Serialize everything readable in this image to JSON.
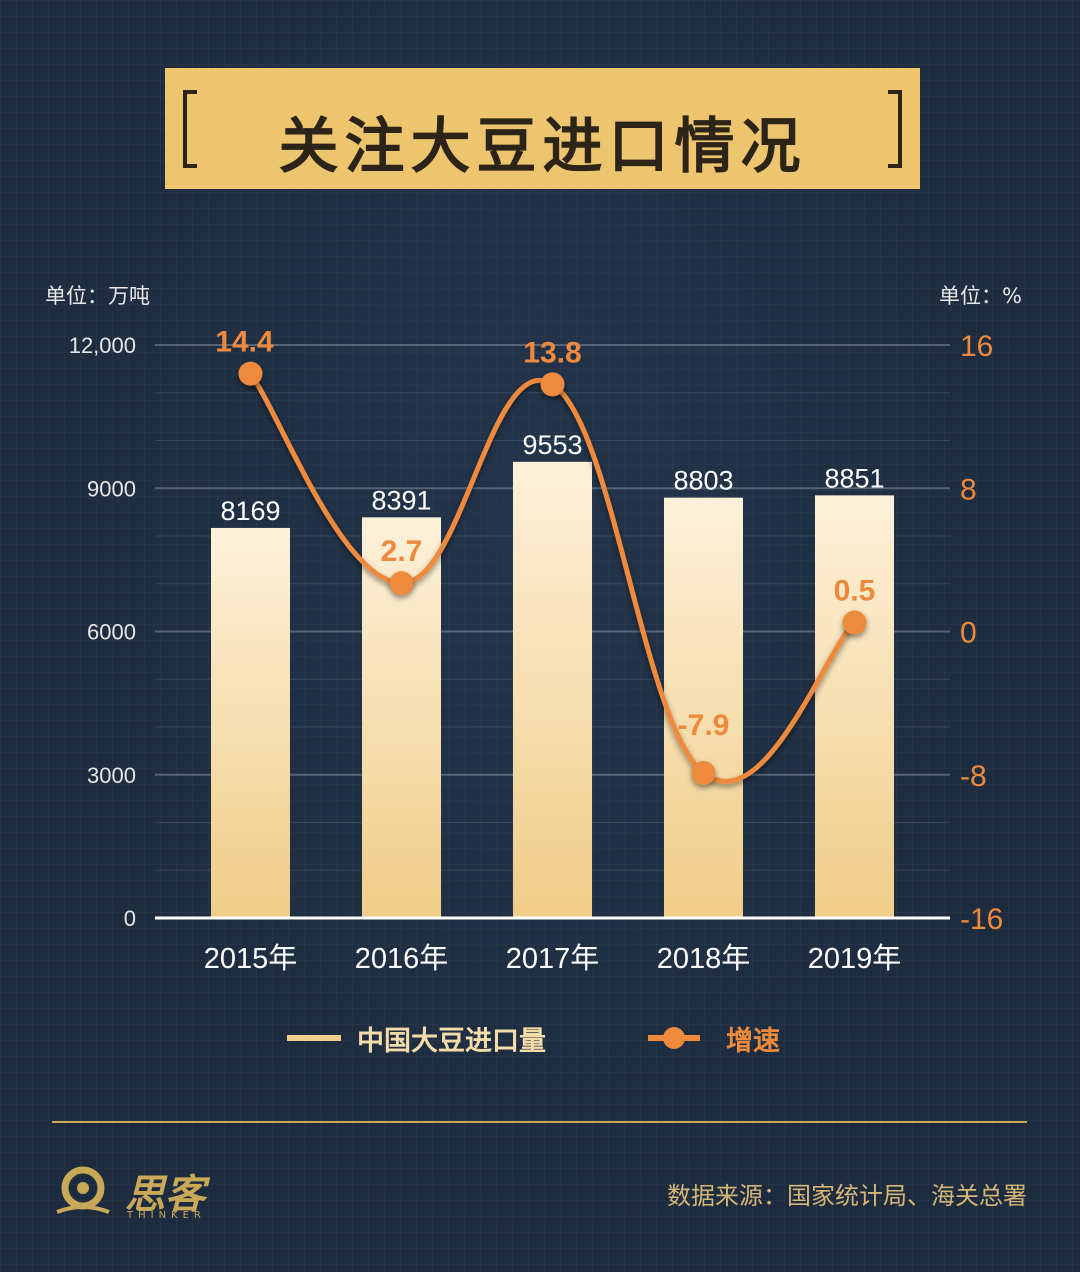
{
  "title": "关注大豆进口情况",
  "unit_left": "单位：万吨",
  "unit_right": "单位：%",
  "legend": {
    "bar_label": "中国大豆进口量",
    "line_label": "增速"
  },
  "source": "数据来源：国家统计局、海关总署",
  "logo": {
    "text": "思客",
    "sub": "THINKER"
  },
  "colors": {
    "bar": "#f0cf8c",
    "line": "#ee8a3c",
    "banner": "#eec56f",
    "background": "#1d2b3e"
  },
  "chart_data": {
    "type": "bar",
    "categories": [
      "2015年",
      "2016年",
      "2017年",
      "2018年",
      "2019年"
    ],
    "series": [
      {
        "name": "中国大豆进口量",
        "type": "bar",
        "axis": "left",
        "values": [
          8169,
          8391,
          9553,
          8803,
          8851
        ]
      },
      {
        "name": "增速",
        "type": "line",
        "axis": "right",
        "values": [
          14.4,
          2.7,
          13.8,
          -7.9,
          0.5
        ]
      }
    ],
    "y_left": {
      "ticks": [
        "12,000",
        "9000",
        "6000",
        "3000",
        "0"
      ],
      "ylim": [
        0,
        12000
      ]
    },
    "y_right": {
      "ticks": [
        "16",
        "8",
        "0",
        "-8",
        "-16"
      ],
      "ylim": [
        -16,
        16
      ]
    },
    "grid": true
  }
}
